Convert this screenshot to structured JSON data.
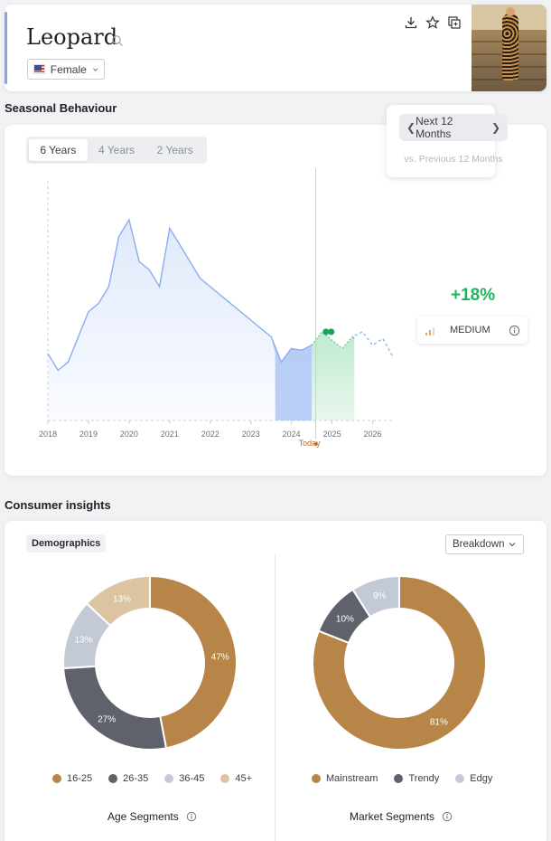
{
  "header": {
    "title": "Leopard",
    "gender": "Female"
  },
  "seasonal": {
    "section_title": "Seasonal Behaviour",
    "year_tabs": [
      "6 Years",
      "4 Years",
      "2 Years"
    ],
    "active_tab": "6 Years",
    "period_label": "Next 12 Months",
    "period_sub": "vs. Previous 12 Months",
    "growth": "+18%",
    "level": "MEDIUM",
    "today_label": "Today",
    "chart_data": {
      "type": "area",
      "x_ticks": [
        "2018",
        "2019",
        "2020",
        "2021",
        "2022",
        "2023",
        "2024",
        "2025",
        "2026"
      ],
      "series": [
        {
          "x": [
            2018.0,
            2018.25,
            2018.5,
            2018.75,
            2019.0,
            2019.25,
            2019.5,
            2019.75,
            2020.0,
            2020.25,
            2020.5,
            2020.75,
            2021.0,
            2021.25,
            2021.5,
            2021.75,
            2022.0,
            2022.25,
            2022.5,
            2022.75,
            2023.0,
            2023.25,
            2023.5,
            2023.75,
            2024.0,
            2024.25,
            2024.5,
            2024.75,
            2025.0,
            2025.25,
            2025.5,
            2025.75,
            2026.0,
            2026.25,
            2026.5
          ],
          "values": [
            40,
            30,
            35,
            50,
            65,
            70,
            80,
            110,
            120,
            95,
            90,
            80,
            115,
            105,
            95,
            85,
            80,
            75,
            70,
            65,
            60,
            55,
            50,
            35,
            43,
            42,
            45,
            53,
            48,
            43,
            50,
            53,
            45,
            49,
            38
          ]
        }
      ],
      "ylim": [
        0,
        140
      ],
      "colors": {
        "history": "#8aaef0",
        "forecast": "#5fcf8c",
        "fill_history": "#dce7fb",
        "fill_forecast": "#bfead0"
      }
    }
  },
  "consumer": {
    "section_title": "Consumer insights",
    "tag": "Demographics",
    "breakdown_label": "Breakdown",
    "age": {
      "title": "Age Segments",
      "chart_data": {
        "type": "pie",
        "labels": [
          "16-25",
          "26-35",
          "36-45",
          "45+"
        ],
        "values": [
          47,
          27,
          13,
          13
        ],
        "colors": [
          "#b68547",
          "#5f626b",
          "#c3cad5",
          "#dcc4a1"
        ]
      }
    },
    "market": {
      "title": "Market Segments",
      "chart_data": {
        "type": "pie",
        "labels": [
          "Mainstream",
          "Trendy",
          "Edgy"
        ],
        "values": [
          81,
          10,
          9
        ],
        "colors": [
          "#b68547",
          "#5f626b",
          "#c3cad5"
        ]
      }
    }
  }
}
